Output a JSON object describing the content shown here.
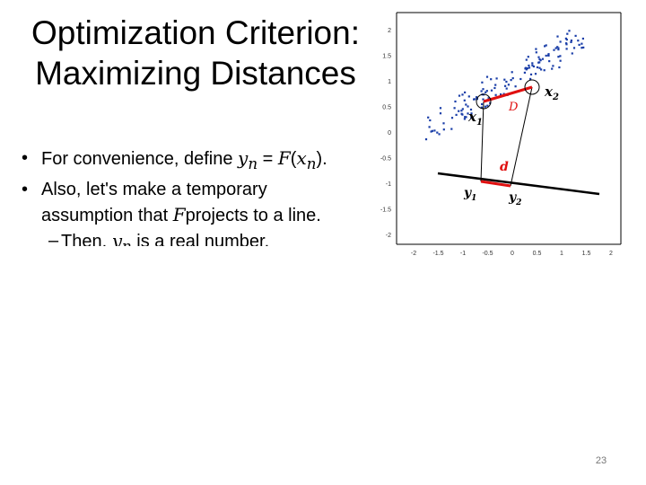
{
  "slide": {
    "title_line1": "Optimization Criterion:",
    "title_line2": "Maximizing Distances",
    "page_number": "23"
  },
  "bullets": {
    "b1_text": "For convenience, define ",
    "b1_yn": "y",
    "b1_yn_sub": "n",
    "b1_eq": " = ",
    "b1_F": "F",
    "b1_open": "(",
    "b1_xn": "x",
    "b1_xn_sub": "n",
    "b1_close": ").",
    "b2_text1": "Also, let's make a temporary",
    "b2_text2a": "assumption that ",
    "b2_F": "F",
    "b2_text2b": "projects to a line.",
    "sub1_text_a": "Then, ",
    "sub1_yn": "y",
    "sub1_yn_sub": "n",
    "sub1_text_b": " is a real number."
  },
  "figure": {
    "y_ticks": [
      "2",
      "1.5",
      "1",
      "0.5",
      "0",
      "-0.5",
      "-1",
      "-1.5",
      "-2"
    ],
    "x_ticks": [
      "-2",
      "-1.5",
      "-1",
      "-0.5",
      "0",
      "0.5",
      "1",
      "1.5",
      "2"
    ],
    "labels": {
      "x1": "x",
      "x1_sub": "1",
      "x2": "x",
      "x2_sub": "2",
      "y1": "y",
      "y1_sub": "1",
      "y2": "y",
      "y2_sub": "2",
      "D": "D",
      "d": "d"
    },
    "colors": {
      "points": "#1a3ea8",
      "highlight": "#e01010",
      "axes": "#000000"
    }
  }
}
